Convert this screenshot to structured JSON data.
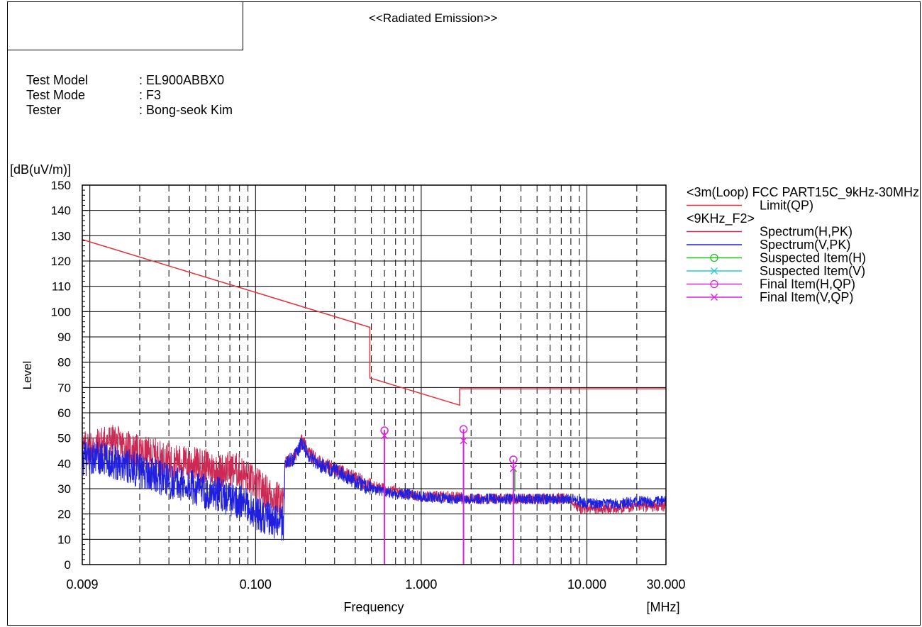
{
  "report": {
    "title": "<<Radiated Emission>>",
    "info": [
      {
        "label": "Test Model",
        "value": ": EL900ABBX0"
      },
      {
        "label": "Test Mode",
        "value": ": F3"
      },
      {
        "label": "Tester",
        "value": ": Bong-seok Kim"
      }
    ]
  },
  "colors": {
    "limit": "#e8303a",
    "spectrum_h": "#cc2a55",
    "spectrum_v": "#1f1fe0",
    "suspected_h": "#22bb22",
    "suspected_v": "#22cccc",
    "final": "#dd22dd"
  },
  "chart_data": {
    "type": "line",
    "xscale": "log",
    "xlim": [
      0.009,
      30
    ],
    "ylim": [
      0,
      150
    ],
    "ylabel_unit": "[dB(uV/m)]",
    "ylabel": "Level",
    "xlabel": "Frequency",
    "xunit": "[MHz]",
    "grid": true,
    "xticks": [
      0.009,
      0.1,
      1,
      10,
      30
    ],
    "xtick_labels": [
      "0.009",
      "0.100",
      "1.000",
      "10.000",
      "30.000"
    ],
    "yticks": [
      0,
      10,
      20,
      30,
      40,
      50,
      60,
      70,
      80,
      90,
      100,
      110,
      120,
      130,
      140,
      150
    ],
    "legend_position": "right",
    "legend": [
      {
        "text": "<3m(Loop) FCC PART15C_9kHz-30MHz>",
        "kind": "header"
      },
      {
        "text": "Limit(QP)",
        "kind": "line",
        "color": "#e8303a"
      },
      {
        "text": "<9KHz_F2>",
        "kind": "header"
      },
      {
        "text": "Spectrum(H,PK)",
        "kind": "line",
        "color": "#cc2a55"
      },
      {
        "text": "Spectrum(V,PK)",
        "kind": "line",
        "color": "#1f1fe0"
      },
      {
        "text": "Suspected Item(H)",
        "kind": "circle",
        "color": "#22bb22"
      },
      {
        "text": "Suspected Item(V)",
        "kind": "cross",
        "color": "#22cccc"
      },
      {
        "text": "Final Item(H,QP)",
        "kind": "circle",
        "color": "#dd22dd"
      },
      {
        "text": "Final Item(V,QP)",
        "kind": "cross",
        "color": "#dd22dd"
      }
    ],
    "series": [
      {
        "name": "Limit(QP)",
        "points": [
          [
            0.009,
            128.5
          ],
          [
            0.49,
            93.8
          ],
          [
            0.49,
            73.8
          ],
          [
            1.705,
            63.0
          ],
          [
            1.705,
            69.5
          ],
          [
            30,
            69.5
          ]
        ]
      },
      {
        "name": "Spectrum(H,PK)",
        "points": [
          [
            0.009,
            46
          ],
          [
            0.011,
            47
          ],
          [
            0.013,
            49
          ],
          [
            0.016,
            47
          ],
          [
            0.02,
            44
          ],
          [
            0.025,
            43
          ],
          [
            0.03,
            41
          ],
          [
            0.04,
            40
          ],
          [
            0.05,
            39
          ],
          [
            0.06,
            37
          ],
          [
            0.07,
            38
          ],
          [
            0.08,
            37
          ],
          [
            0.09,
            34
          ],
          [
            0.1,
            32
          ],
          [
            0.11,
            30
          ],
          [
            0.12,
            28
          ],
          [
            0.13,
            27
          ],
          [
            0.148,
            24
          ],
          [
            0.15,
            40
          ],
          [
            0.17,
            42
          ],
          [
            0.19,
            49
          ],
          [
            0.21,
            44
          ],
          [
            0.25,
            40
          ],
          [
            0.3,
            38
          ],
          [
            0.4,
            34
          ],
          [
            0.5,
            31
          ],
          [
            0.6,
            30
          ],
          [
            0.7,
            29
          ],
          [
            0.8,
            28
          ],
          [
            1,
            27
          ],
          [
            1.5,
            27
          ],
          [
            2,
            26
          ],
          [
            3,
            26
          ],
          [
            5,
            26
          ],
          [
            7,
            26
          ],
          [
            8,
            26
          ],
          [
            9,
            22
          ],
          [
            10,
            22
          ],
          [
            15,
            22
          ],
          [
            20,
            23
          ],
          [
            30,
            23
          ]
        ]
      },
      {
        "name": "Spectrum(V,PK)",
        "points": [
          [
            0.009,
            42
          ],
          [
            0.011,
            42
          ],
          [
            0.013,
            41
          ],
          [
            0.016,
            40
          ],
          [
            0.02,
            37
          ],
          [
            0.025,
            35
          ],
          [
            0.03,
            33
          ],
          [
            0.04,
            31
          ],
          [
            0.05,
            29
          ],
          [
            0.06,
            28
          ],
          [
            0.07,
            26
          ],
          [
            0.08,
            25
          ],
          [
            0.09,
            23
          ],
          [
            0.1,
            21
          ],
          [
            0.11,
            19
          ],
          [
            0.12,
            18
          ],
          [
            0.13,
            17
          ],
          [
            0.148,
            16
          ],
          [
            0.15,
            40
          ],
          [
            0.17,
            42
          ],
          [
            0.19,
            48
          ],
          [
            0.21,
            43
          ],
          [
            0.25,
            39
          ],
          [
            0.3,
            37
          ],
          [
            0.4,
            33
          ],
          [
            0.5,
            30
          ],
          [
            0.6,
            29
          ],
          [
            0.7,
            28
          ],
          [
            0.8,
            28
          ],
          [
            1,
            27
          ],
          [
            1.5,
            26
          ],
          [
            2,
            26
          ],
          [
            3,
            26
          ],
          [
            5,
            26
          ],
          [
            7,
            26
          ],
          [
            8,
            26
          ],
          [
            9,
            25
          ],
          [
            10,
            24
          ],
          [
            15,
            24
          ],
          [
            20,
            25
          ],
          [
            30,
            25
          ]
        ]
      }
    ],
    "final_items": [
      {
        "freq": 0.6,
        "h": 53,
        "v": 51
      },
      {
        "freq": 1.8,
        "h": 53.5,
        "v": 49
      },
      {
        "freq": 3.6,
        "h": 41.5,
        "v": 38
      }
    ]
  }
}
